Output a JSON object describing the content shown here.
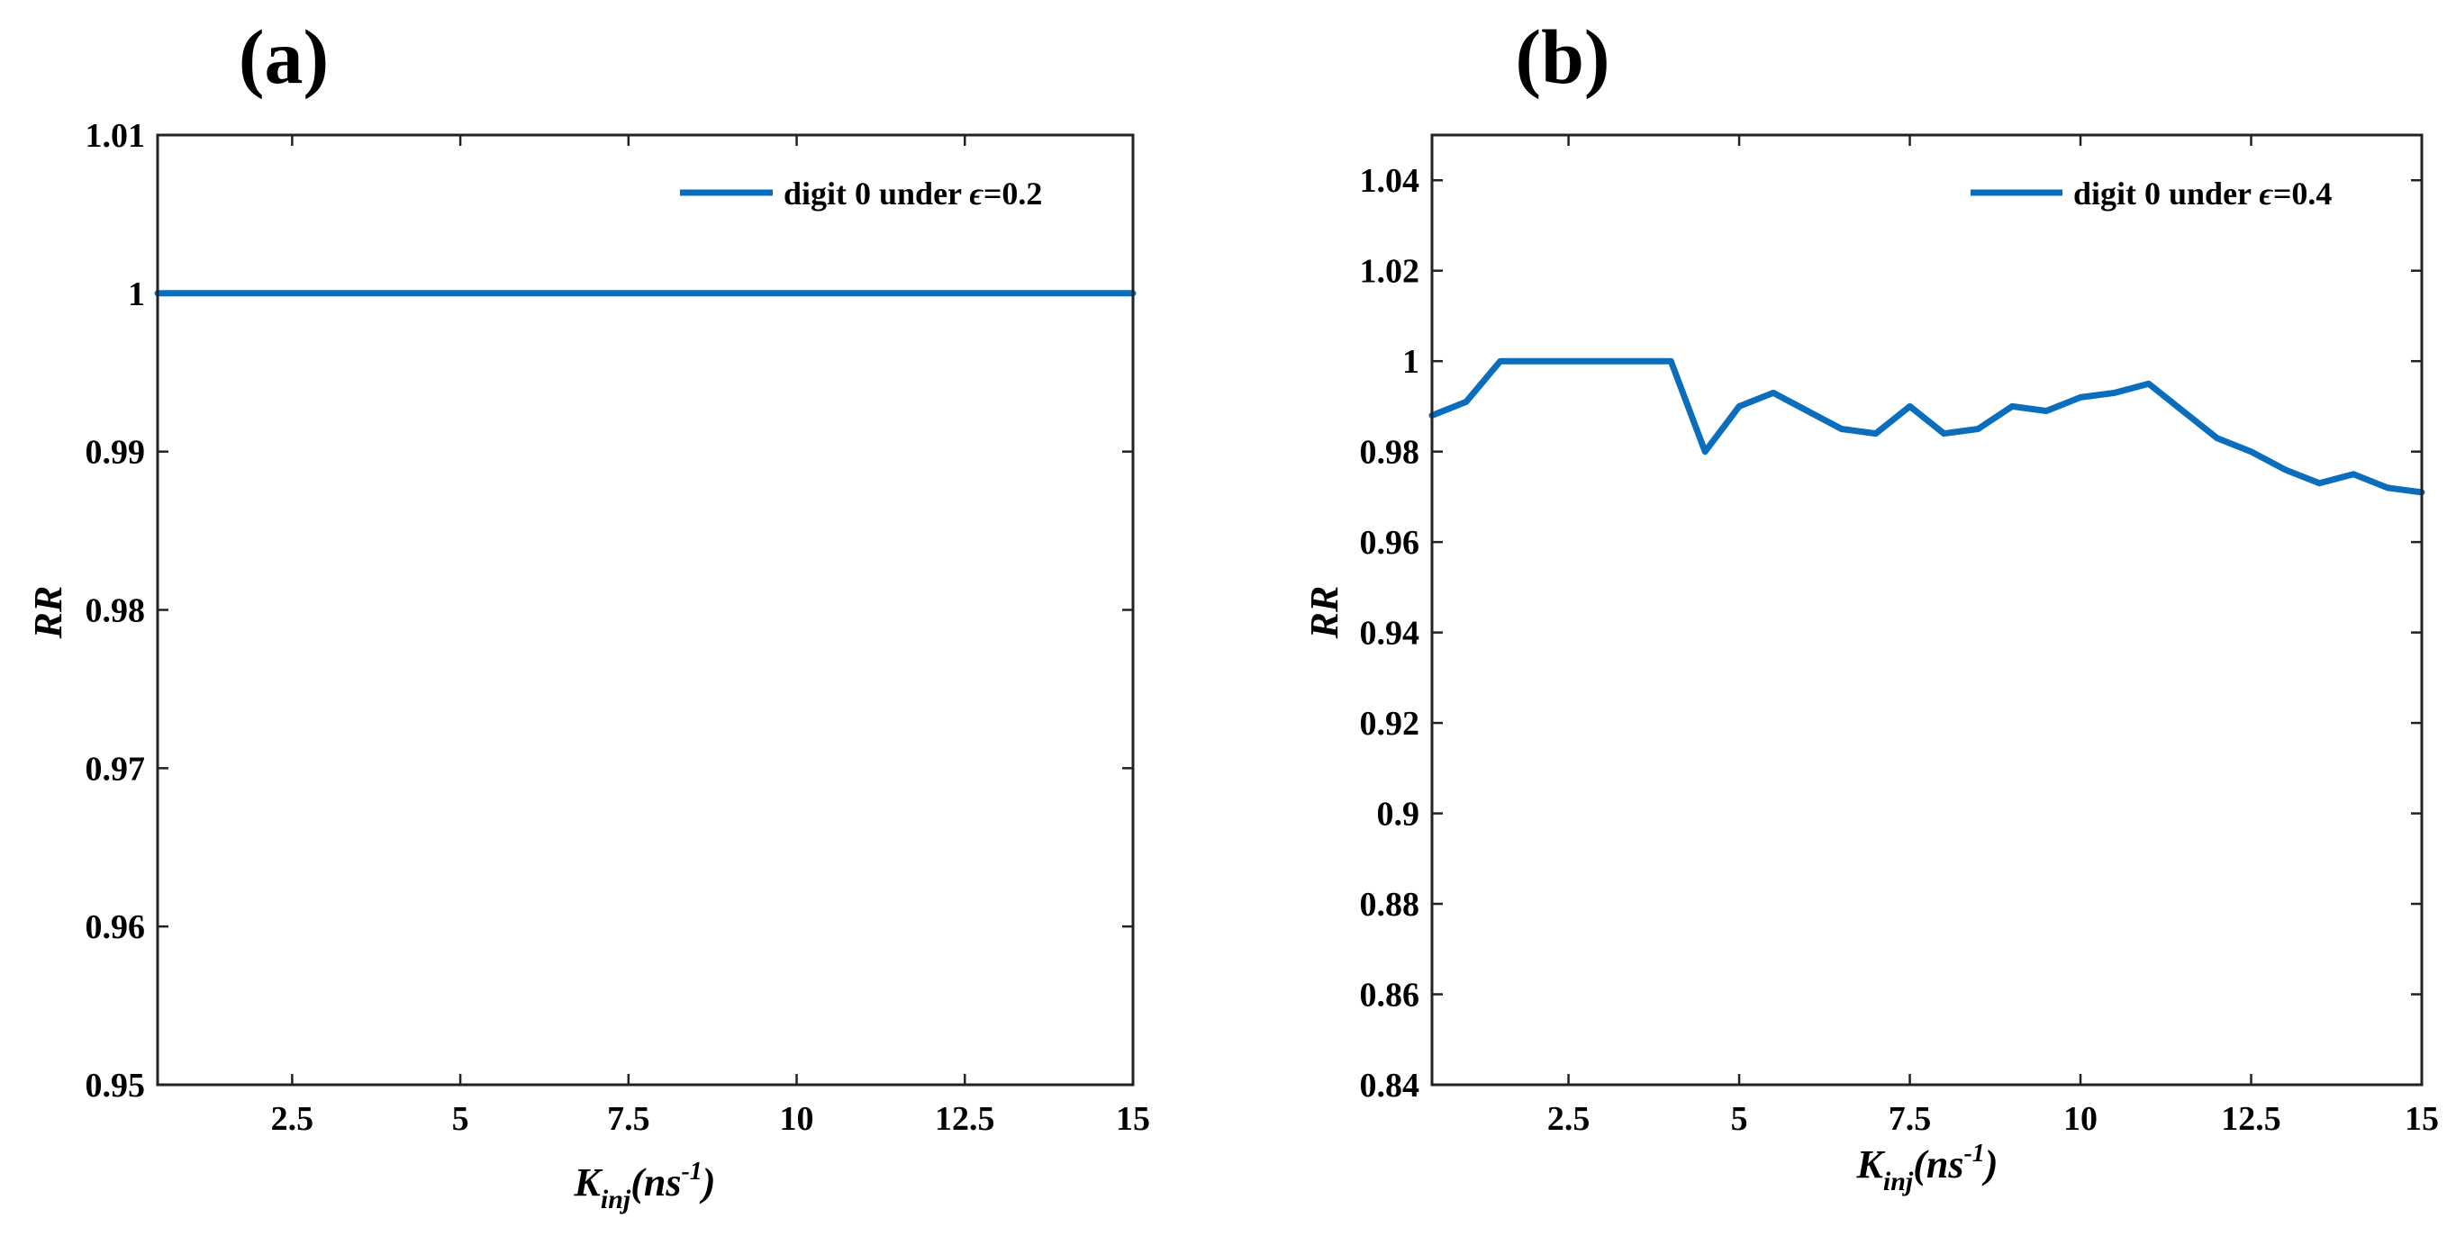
{
  "colors": {
    "series": "#0a6ebd",
    "axis": "#222222"
  },
  "chart_data": [
    {
      "panel_label": "(a)",
      "type": "line",
      "xlabel": {
        "main": "K",
        "sub": "inj",
        "unit_open": "(ns",
        "sup": "-1",
        "unit_close": ")"
      },
      "ylabel": "RR",
      "xlim": [
        0.5,
        15
      ],
      "ylim": [
        0.95,
        1.01
      ],
      "xticks": [
        2.5,
        5,
        7.5,
        10,
        12.5,
        15
      ],
      "xtick_labels": [
        "2.5",
        "5",
        "7.5",
        "10",
        "12.5",
        "15"
      ],
      "yticks": [
        0.95,
        0.96,
        0.97,
        0.98,
        0.99,
        1,
        1.01
      ],
      "ytick_labels": [
        "0.95",
        "0.96",
        "0.97",
        "0.98",
        "0.99",
        "1",
        "1.01"
      ],
      "legend_position": "top-right",
      "legend": {
        "prefix": "digit 0 under ",
        "symbol": "ϵ",
        "suffix": "=0.2"
      },
      "series": [
        {
          "name": "digit 0 under ϵ=0.2",
          "x": [
            0.5,
            15
          ],
          "y": [
            1,
            1
          ]
        }
      ]
    },
    {
      "panel_label": "(b)",
      "type": "line",
      "xlabel": {
        "main": "K",
        "sub": "inj",
        "unit_open": "(ns",
        "sup": "-1",
        "unit_close": ")"
      },
      "ylabel": "RR",
      "xlim": [
        0.5,
        15
      ],
      "ylim": [
        0.84,
        1.05
      ],
      "xticks": [
        2.5,
        5,
        7.5,
        10,
        12.5,
        15
      ],
      "xtick_labels": [
        "2.5",
        "5",
        "7.5",
        "10",
        "12.5",
        "15"
      ],
      "yticks": [
        0.84,
        0.86,
        0.88,
        0.9,
        0.92,
        0.94,
        0.96,
        0.98,
        1,
        1.02,
        1.04
      ],
      "ytick_labels": [
        "0.84",
        "0.86",
        "0.88",
        "0.9",
        "0.92",
        "0.94",
        "0.96",
        "0.98",
        "1",
        "1.02",
        "1.04"
      ],
      "legend_position": "top-right",
      "legend": {
        "prefix": "digit 0 under ",
        "symbol": "ϵ",
        "suffix": "=0.4"
      },
      "series": [
        {
          "name": "digit 0 under ϵ=0.4",
          "x": [
            0.5,
            1,
            1.5,
            2,
            2.5,
            3,
            3.5,
            4,
            4.5,
            5,
            5.5,
            6,
            6.5,
            7,
            7.5,
            8,
            8.5,
            9,
            9.5,
            10,
            10.5,
            11,
            11.5,
            12,
            12.5,
            13,
            13.5,
            14,
            14.5,
            15
          ],
          "y": [
            0.988,
            0.991,
            1.0,
            1.0,
            1.0,
            1.0,
            1.0,
            1.0,
            0.98,
            0.99,
            0.993,
            0.989,
            0.985,
            0.984,
            0.99,
            0.984,
            0.985,
            0.99,
            0.989,
            0.992,
            0.993,
            0.995,
            0.989,
            0.983,
            0.98,
            0.976,
            0.973,
            0.975,
            0.972,
            0.971
          ]
        }
      ]
    }
  ]
}
